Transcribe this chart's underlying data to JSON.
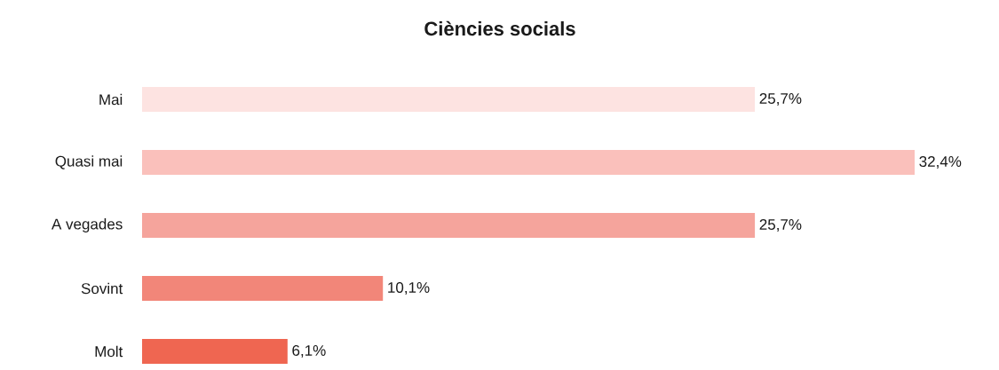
{
  "chart_data": {
    "type": "bar",
    "orientation": "horizontal",
    "title": "Ciències socials",
    "categories": [
      "Mai",
      "Quasi mai",
      "A vegades",
      "Sovint",
      "Molt"
    ],
    "values": [
      25.7,
      32.4,
      25.7,
      10.1,
      6.1
    ],
    "colors": [
      "#fde3e1",
      "#fac0bb",
      "#f5a49c",
      "#f28679",
      "#ef6651"
    ],
    "value_labels": [
      "25,7%",
      "32,4%",
      "25,7%",
      "10,1%",
      "6,1%"
    ]
  }
}
